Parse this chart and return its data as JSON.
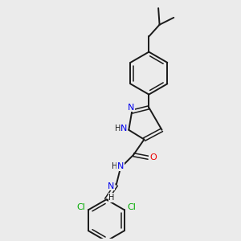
{
  "background_color": "#ebebeb",
  "bond_color": "#1a1a1a",
  "N_color": "#0000ee",
  "O_color": "#ee0000",
  "Cl_color": "#00aa00",
  "figsize": [
    3.0,
    3.0
  ],
  "dpi": 100,
  "xlim": [
    0,
    10
  ],
  "ylim": [
    0,
    10
  ]
}
